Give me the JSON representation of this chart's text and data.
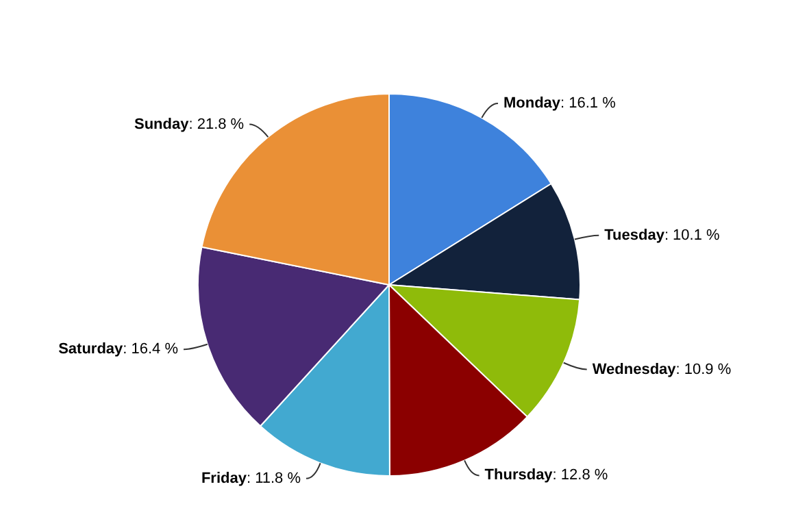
{
  "chart_data": {
    "type": "pie",
    "categories": [
      "Monday",
      "Tuesday",
      "Wednesday",
      "Thursday",
      "Friday",
      "Saturday",
      "Sunday"
    ],
    "values": [
      16.1,
      10.1,
      10.9,
      12.8,
      11.8,
      16.4,
      21.8
    ],
    "value_labels": [
      ": 16.1 %",
      ": 10.1 %",
      ": 10.9 %",
      ": 12.8 %",
      ": 11.8 %",
      ": 16.4 %",
      ": 21.8 %"
    ],
    "colors": [
      "#3e82dc",
      "#12223b",
      "#8fbb0a",
      "#8b0000",
      "#42a9d0",
      "#482a73",
      "#ea9036"
    ],
    "legend": false
  }
}
